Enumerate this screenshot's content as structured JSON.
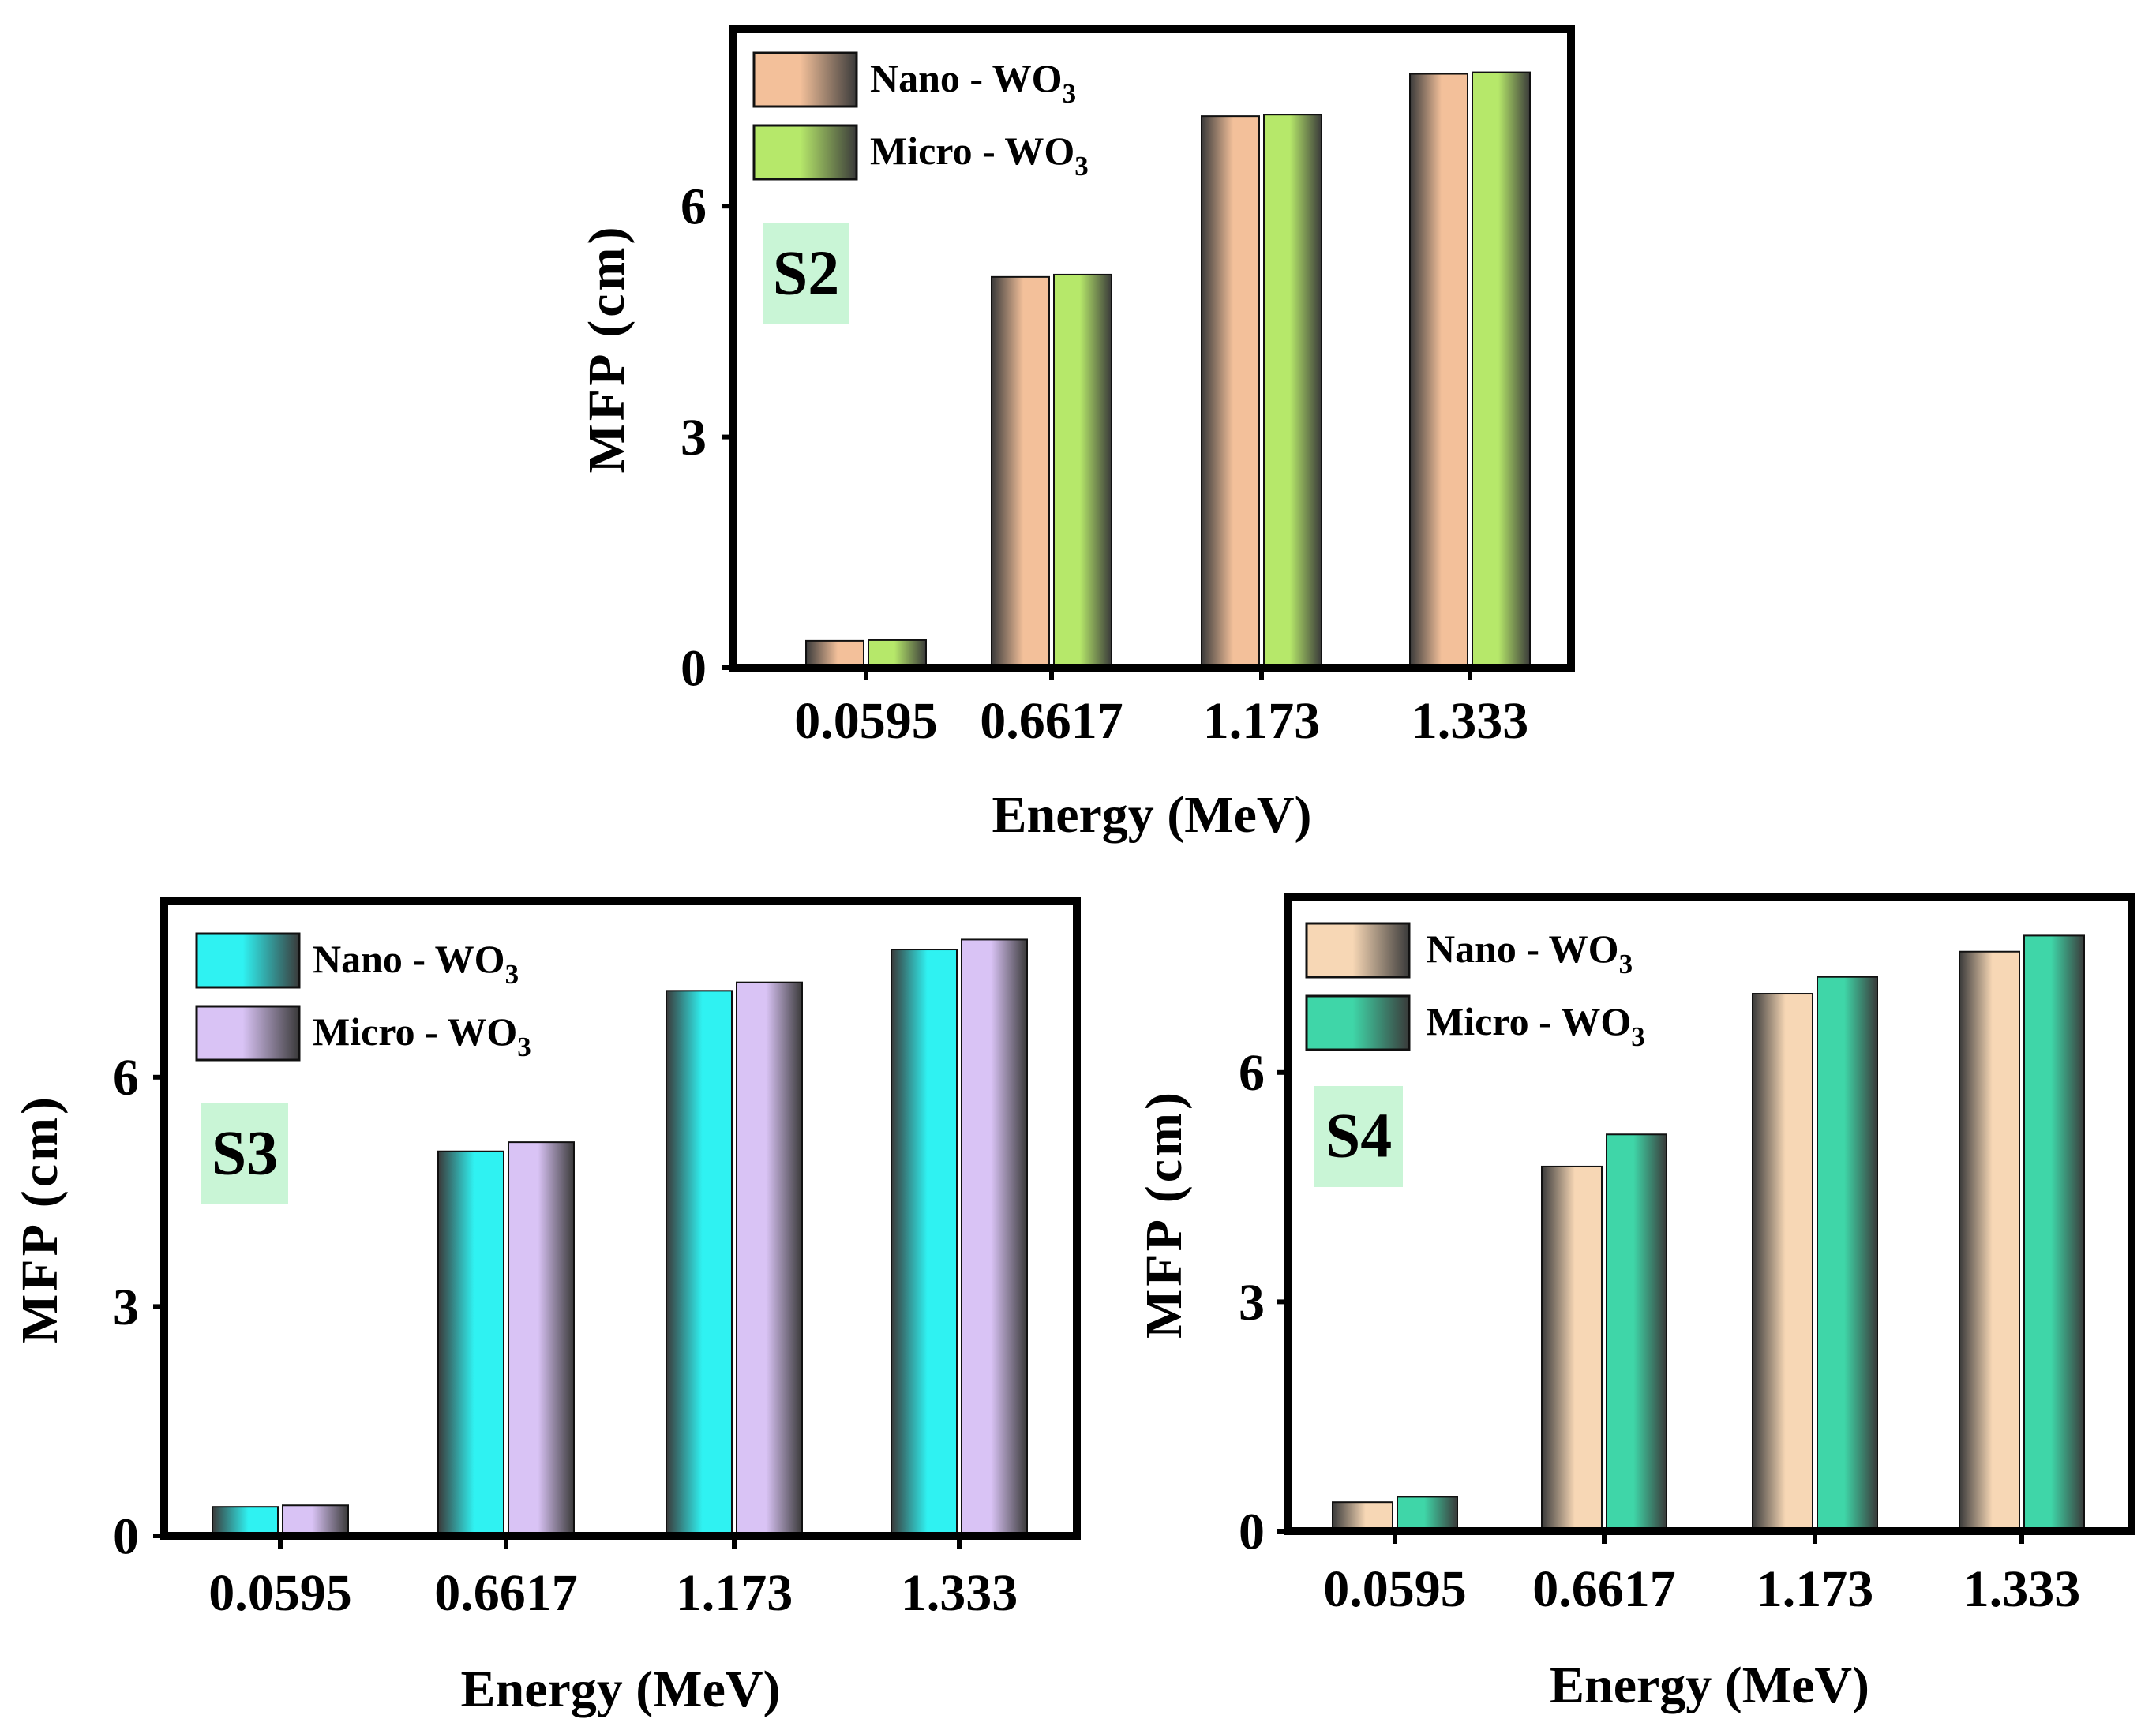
{
  "chart_data": [
    {
      "id": "S2",
      "type": "bar",
      "panel_label": "S2",
      "xlabel": "Energy (MeV)",
      "ylabel": "MFP (cm)",
      "categories": [
        "0.0595",
        "0.6617",
        "1.173",
        "1.333"
      ],
      "yticks": [
        "0",
        "3",
        "6"
      ],
      "ylim": [
        0,
        8.3
      ],
      "series": [
        {
          "name": "Nano - WO",
          "subscript": "3",
          "values": [
            0.35,
            5.08,
            7.17,
            7.72
          ],
          "color": "#f3c09a"
        },
        {
          "name": "Micro - WO",
          "subscript": "3",
          "values": [
            0.36,
            5.11,
            7.19,
            7.74
          ],
          "color": "#b6e86a"
        }
      ]
    },
    {
      "id": "S3",
      "type": "bar",
      "panel_label": "S3",
      "xlabel": "Energy (MeV)",
      "ylabel": "MFP (cm)",
      "categories": [
        "0.0595",
        "0.6617",
        "1.173",
        "1.333"
      ],
      "yticks": [
        "0",
        "3",
        "6"
      ],
      "ylim": [
        0,
        8.3
      ],
      "series": [
        {
          "name": "Nano - WO",
          "subscript": "3",
          "values": [
            0.38,
            5.03,
            7.13,
            7.67
          ],
          "color": "#2ff2f2"
        },
        {
          "name": "Micro - WO",
          "subscript": "3",
          "values": [
            0.4,
            5.15,
            7.24,
            7.8
          ],
          "color": "#d9c3f5"
        }
      ]
    },
    {
      "id": "S4",
      "type": "bar",
      "panel_label": "S4",
      "xlabel": "Energy (MeV)",
      "ylabel": "MFP (cm)",
      "categories": [
        "0.0595",
        "0.6617",
        "1.173",
        "1.333"
      ],
      "yticks": [
        "0",
        "3",
        "6"
      ],
      "ylim": [
        0,
        8.3
      ],
      "series": [
        {
          "name": "Nano - WO",
          "subscript": "3",
          "values": [
            0.38,
            4.77,
            7.03,
            7.58
          ],
          "color": "#f7d7b5"
        },
        {
          "name": "Micro - WO",
          "subscript": "3",
          "values": [
            0.45,
            5.19,
            7.25,
            7.79
          ],
          "color": "#3fd6a8"
        }
      ]
    }
  ]
}
